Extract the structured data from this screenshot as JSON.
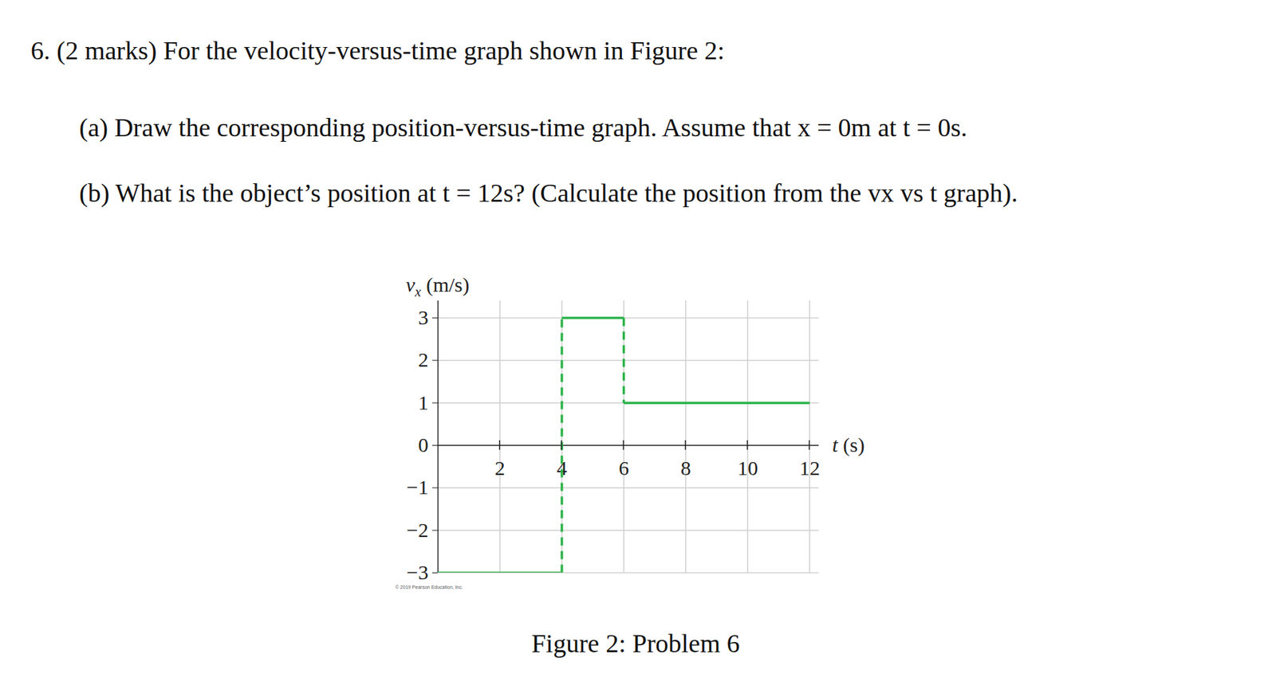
{
  "document": {
    "number": "6.",
    "marks": "(2 marks)",
    "intro": "For the velocity-versus-time graph shown in Figure 2:",
    "parts": [
      {
        "label": "(a)",
        "text": "Draw the corresponding position-versus-time graph. Assume that x = 0m at t = 0s."
      },
      {
        "label": "(b)",
        "text": "What is the object’s position at t = 12s? (Calculate the position from the vx vs t graph)."
      }
    ],
    "figure_caption": "Figure 2: Problem 6"
  },
  "chart_data": {
    "type": "line",
    "x_label": {
      "symbol": "t",
      "unit": "(s)"
    },
    "y_label": {
      "symbol": "v",
      "subscript": "x",
      "unit": "(m/s)"
    },
    "x": [
      0,
      4,
      4,
      6,
      6,
      12
    ],
    "values": [
      -3,
      -3,
      3,
      3,
      1,
      1
    ],
    "color": "#2db34a",
    "xlim": [
      0,
      12.3
    ],
    "xticks": [
      2,
      4,
      6,
      8,
      10,
      12
    ],
    "ylim": [
      -3,
      3.4
    ],
    "yticks": [
      -3,
      -2,
      -1,
      0,
      1,
      2,
      3
    ],
    "grid": true,
    "credit": "© 2019 Pearson Education, Inc."
  }
}
